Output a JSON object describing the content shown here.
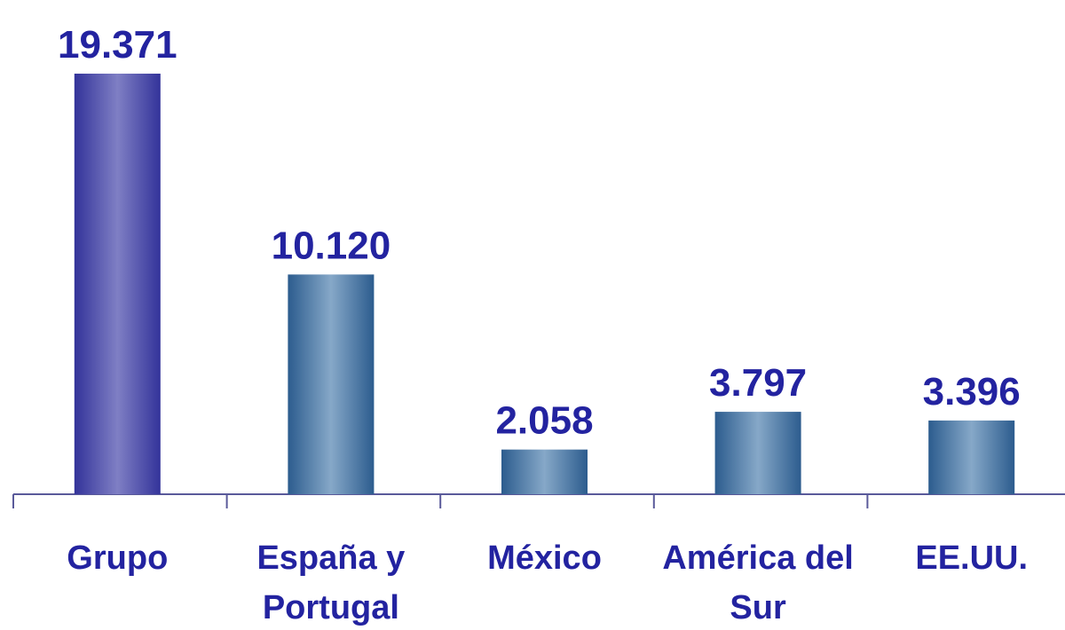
{
  "chart_data": {
    "type": "bar",
    "categories": [
      "Grupo",
      "España y Portugal",
      "México",
      "América del Sur",
      "EE.UU."
    ],
    "values": [
      19371,
      10120,
      2058,
      3797,
      3396
    ],
    "value_labels": [
      "19.371",
      "10.120",
      "2.058",
      "3.797",
      "3.396"
    ],
    "colors": [
      "#5a5ab0",
      "#4f7aa6",
      "#4f7aa6",
      "#4f7aa6",
      "#4f7aa6"
    ],
    "ylim": [
      0,
      20000
    ]
  }
}
